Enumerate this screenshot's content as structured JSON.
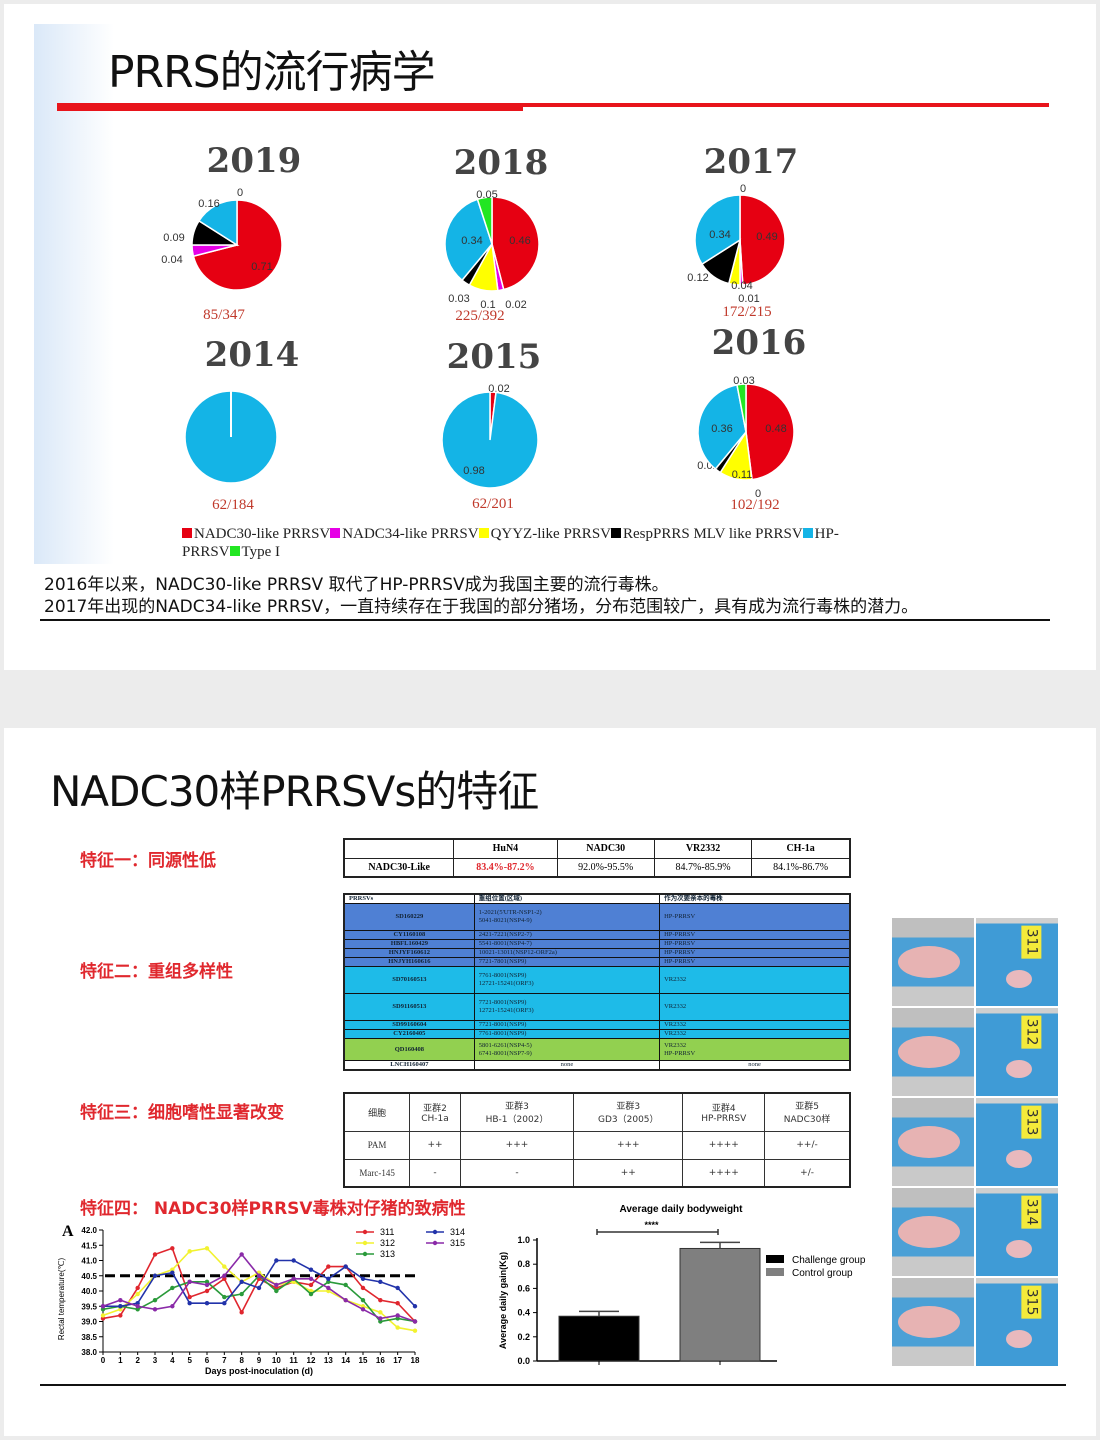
{
  "slide1": {
    "title": "PRRS的流行病学",
    "colors": {
      "NADC30": "#e60012",
      "NADC34": "#e600e6",
      "QYYZ": "#ffff00",
      "Resp": "#000000",
      "HP": "#14b4e6",
      "TypeI": "#22e622"
    },
    "pies": [
      {
        "year": "2019",
        "count": "85/347",
        "slices": [
          {
            "k": "NADC30",
            "v": 0.71,
            "label": "0.71"
          },
          {
            "k": "NADC34",
            "v": 0.04,
            "label": "0.04"
          },
          {
            "k": "QYYZ",
            "v": 0,
            "label": ""
          },
          {
            "k": "Resp",
            "v": 0.09,
            "label": "0.09"
          },
          {
            "k": "HP",
            "v": 0.16,
            "label": "0.16"
          },
          {
            "k": "TypeI",
            "v": 0,
            "label": "0"
          }
        ]
      },
      {
        "year": "2018",
        "count": "225/392",
        "slices": [
          {
            "k": "NADC30",
            "v": 0.46,
            "label": "0.46"
          },
          {
            "k": "NADC34",
            "v": 0.02,
            "label": "0.02"
          },
          {
            "k": "QYYZ",
            "v": 0.1,
            "label": "0.1"
          },
          {
            "k": "Resp",
            "v": 0.03,
            "label": "0.03"
          },
          {
            "k": "HP",
            "v": 0.34,
            "label": "0.34"
          },
          {
            "k": "TypeI",
            "v": 0.05,
            "label": "0.05"
          }
        ]
      },
      {
        "year": "2017",
        "count": "172/215",
        "slices": [
          {
            "k": "NADC30",
            "v": 0.49,
            "label": "0.49"
          },
          {
            "k": "NADC34",
            "v": 0.01,
            "label": "0.01"
          },
          {
            "k": "QYYZ",
            "v": 0.04,
            "label": "0.04"
          },
          {
            "k": "Resp",
            "v": 0.12,
            "label": "0.12"
          },
          {
            "k": "HP",
            "v": 0.34,
            "label": "0.34"
          },
          {
            "k": "TypeI",
            "v": 0,
            "label": "0"
          }
        ]
      },
      {
        "year": "2014",
        "count": "62/184",
        "slices": [
          {
            "k": "HP",
            "v": 1,
            "label": ""
          }
        ]
      },
      {
        "year": "2015",
        "count": "62/201",
        "slices": [
          {
            "k": "NADC30",
            "v": 0.02,
            "label": "0.02"
          },
          {
            "k": "HP",
            "v": 0.98,
            "label": "0.98"
          }
        ]
      },
      {
        "year": "2016",
        "count": "102/192",
        "slices": [
          {
            "k": "NADC30",
            "v": 0.48,
            "label": "0.48"
          },
          {
            "k": "NADC34",
            "v": 0,
            "label": "0"
          },
          {
            "k": "QYYZ",
            "v": 0.11,
            "label": "0.11"
          },
          {
            "k": "Resp",
            "v": 0.02,
            "label": "0.02"
          },
          {
            "k": "HP",
            "v": 0.36,
            "label": "0.36"
          },
          {
            "k": "TypeI",
            "v": 0.03,
            "label": "0.03"
          }
        ]
      }
    ],
    "legend": [
      {
        "k": "NADC30",
        "label": "NADC30-like PRRSV"
      },
      {
        "k": "NADC34",
        "label": "NADC34-like PRRSV"
      },
      {
        "k": "QYYZ",
        "label": "QYYZ-like PRRSV"
      },
      {
        "k": "Resp",
        "label": "RespPRRS MLV like PRRSV"
      },
      {
        "k": "HP",
        "label": "HP-PRRSV"
      },
      {
        "k": "TypeI",
        "label": "Type I"
      }
    ],
    "notes": [
      "2016年以来，NADC30-like PRRSV 取代了HP-PRRSV成为我国主要的流行毒株。",
      "2017年出现的NADC34-like PRRSV，一直持续存在于我国的部分猪场，分布范围较广，具有成为流行毒株的潜力。"
    ]
  },
  "slide2": {
    "title": "NADC30样PRRSVs的特征",
    "features": [
      "特征一：同源性低",
      "特征二：重组多样性",
      "特征三：细胞嗜性显著改变",
      "特征四： NADC30样PRRSV毒株对仔猪的致病性"
    ],
    "homology": {
      "headers": [
        "",
        "HuN4",
        "NADC30",
        "VR2332",
        "CH-1a"
      ],
      "row": [
        "NADC30-Like",
        "83.4%-87.2%",
        "92.0%-95.5%",
        "84.7%-85.9%",
        "84.1%-86.7%"
      ]
    },
    "recombination": {
      "headers": [
        "PRRSVs",
        "重组位置(区域)",
        "作为次要亲本的毒株"
      ],
      "rows": [
        {
          "strain": "SD160229",
          "regions": [
            "1-2021(5'UTR-NSP1-2)",
            "5041-8021(NSP4-9)"
          ],
          "parent": [
            "HP-PRRSV"
          ],
          "color": "#4f80d4"
        },
        {
          "strain": "CY1160108",
          "regions": [
            "2421-7221(NSP2-7)"
          ],
          "parent": [
            "HP-PRRSV"
          ],
          "color": "#4f80d4"
        },
        {
          "strain": "HBFL160429",
          "regions": [
            "5541-8001(NSP4-7)"
          ],
          "parent": [
            "HP-PRRSV"
          ],
          "color": "#4f80d4"
        },
        {
          "strain": "HNJYF160612",
          "regions": [
            "10021-13011(NSP12-ORF2a)"
          ],
          "parent": [
            "HP-PRRSV"
          ],
          "color": "#4f80d4"
        },
        {
          "strain": "HNJYH160616",
          "regions": [
            "7721-7801(NSP9)"
          ],
          "parent": [
            "HP-PRRSV"
          ],
          "color": "#4f80d4"
        },
        {
          "strain": "SD70160513",
          "regions": [
            "7761-8001(NSP9)",
            "12721-15241(ORF3)"
          ],
          "parent": [
            "VR2332"
          ],
          "color": "#1ebbe8"
        },
        {
          "strain": "SD91160513",
          "regions": [
            "7721-8001(NSP9)",
            "12721-15241(ORF3)"
          ],
          "parent": [
            "VR2332"
          ],
          "color": "#1ebbe8"
        },
        {
          "strain": "SD99160604",
          "regions": [
            "7721-8001(NSP9)"
          ],
          "parent": [
            "VR2332"
          ],
          "color": "#1ebbe8"
        },
        {
          "strain": "CY2160405",
          "regions": [
            "7761-8001(NSP9)"
          ],
          "parent": [
            "VR2332"
          ],
          "color": "#1ebbe8"
        },
        {
          "strain": "QD160408",
          "regions": [
            "5801-6261(NSP4-5)",
            "6741-8001(NSP7-9)"
          ],
          "parent": [
            "VR2332",
            "HP-PRRSV"
          ],
          "color": "#92d050"
        },
        {
          "strain": "LNCH160407",
          "regions": [
            "none"
          ],
          "parent": [
            "none"
          ],
          "color": "#ffffff"
        }
      ]
    },
    "tropism": {
      "headers": [
        "细胞",
        [
          "亚群2",
          "CH-1a"
        ],
        [
          "亚群3",
          "HB-1（2002）"
        ],
        [
          "亚群3",
          "GD3（2005）"
        ],
        [
          "亚群4",
          "HP-PRRSV"
        ],
        [
          "亚群5",
          "NADC30样"
        ]
      ],
      "rows": [
        [
          "PAM",
          "++",
          "+++",
          "+++",
          "++++",
          "++/-"
        ],
        [
          "Marc-145",
          "-",
          "-",
          "++",
          "++++",
          "+/-"
        ]
      ]
    },
    "photo_tags": [
      "311",
      "312",
      "313",
      "314",
      "315"
    ]
  },
  "chart_data": [
    {
      "type": "line",
      "panel": "A",
      "xlabel": "Days post-inoculation (d)",
      "ylabel": "Rectal temperature(℃)",
      "ylim": [
        38.0,
        42.0
      ],
      "yticks": [
        "38.0",
        "38.5",
        "39.0",
        "39.5",
        "40.0",
        "40.5",
        "41.0",
        "41.5",
        "42.0"
      ],
      "x": [
        0,
        1,
        2,
        3,
        4,
        5,
        6,
        7,
        8,
        9,
        10,
        11,
        12,
        13,
        14,
        15,
        16,
        17,
        18
      ],
      "threshold": 40.5,
      "legend": "top-right",
      "series": [
        {
          "name": "311",
          "color": "#e0262e",
          "values": [
            39.1,
            39.2,
            40.1,
            41.2,
            41.4,
            39.8,
            40.0,
            40.4,
            39.3,
            40.4,
            40.1,
            40.3,
            40.2,
            40.8,
            40.8,
            40.1,
            39.7,
            39.6,
            39.0
          ]
        },
        {
          "name": "312",
          "color": "#f2f230",
          "values": [
            39.2,
            39.4,
            39.9,
            40.5,
            40.7,
            41.3,
            41.4,
            40.8,
            40.3,
            40.6,
            40.2,
            40.3,
            40.0,
            40.0,
            39.7,
            39.5,
            39.3,
            38.8,
            38.7
          ]
        },
        {
          "name": "313",
          "color": "#2a9a3a",
          "values": [
            39.4,
            39.5,
            39.4,
            39.7,
            40.1,
            40.3,
            40.3,
            39.8,
            39.9,
            40.5,
            40.0,
            40.4,
            39.9,
            40.3,
            40.2,
            39.7,
            39.0,
            39.1,
            39.0
          ]
        },
        {
          "name": "314",
          "color": "#2233aa",
          "values": [
            39.5,
            39.5,
            39.6,
            40.5,
            40.6,
            39.6,
            39.6,
            39.6,
            40.3,
            40.1,
            41.0,
            41.0,
            40.7,
            40.4,
            40.8,
            40.4,
            40.3,
            40.1,
            39.5
          ]
        },
        {
          "name": "315",
          "color": "#8a2aa8",
          "values": [
            39.5,
            39.7,
            39.5,
            39.4,
            39.5,
            40.3,
            40.2,
            40.5,
            41.2,
            40.5,
            40.2,
            40.4,
            40.4,
            40.1,
            39.7,
            39.4,
            39.1,
            39.2,
            39.0
          ]
        }
      ]
    },
    {
      "type": "bar",
      "title": "Average daily bodyweight",
      "ylabel": "Average daily gain(Kg)",
      "ylim": [
        0,
        1.0
      ],
      "yticks": [
        "0.0",
        "0.2",
        "0.4",
        "0.6",
        "0.8",
        "1.0"
      ],
      "significance": "****",
      "legend": "top-right",
      "series": [
        {
          "name": "Challenge group",
          "value": 0.37,
          "error": 0.04,
          "color": "#000000"
        },
        {
          "name": "Control group",
          "value": 0.93,
          "error": 0.05,
          "color": "#7f7f7f"
        }
      ]
    }
  ]
}
